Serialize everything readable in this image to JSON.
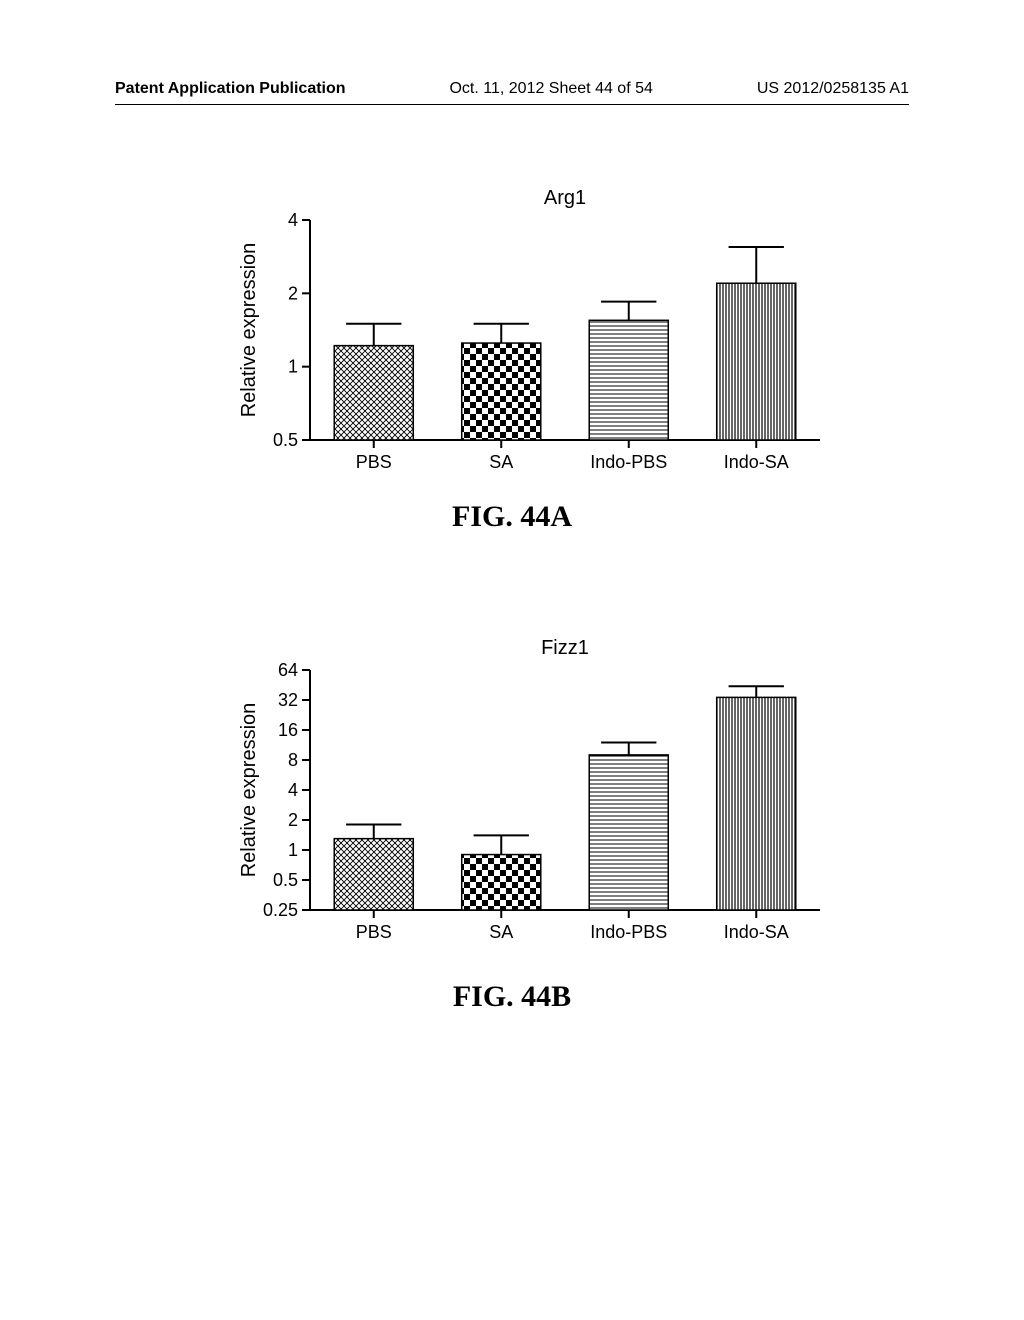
{
  "header": {
    "left": "Patent Application Publication",
    "mid": "Oct. 11, 2012  Sheet 44 of 54",
    "right": "US 2012/0258135 A1"
  },
  "chartA": {
    "type": "bar",
    "title": "Arg1",
    "ylabel": "Relative expression",
    "categories": [
      "PBS",
      "SA",
      "Indo-PBS",
      "Indo-SA"
    ],
    "values": [
      1.22,
      1.25,
      1.55,
      2.2
    ],
    "errors": [
      0.28,
      0.25,
      0.3,
      0.9
    ],
    "yticks": [
      0.5,
      1,
      2,
      4
    ],
    "ylim": [
      0.5,
      4
    ],
    "bar_width": 0.62,
    "patterns": [
      "crosshatch-fine",
      "checker",
      "h-lines",
      "v-lines"
    ],
    "colors": {
      "bar_stroke": "#000000",
      "axis": "#000000",
      "bg": "#ffffff"
    },
    "title_fontsize": 20,
    "label_fontsize": 18,
    "figure_label": "FIG. 44A"
  },
  "chartB": {
    "type": "bar",
    "title": "Fizz1",
    "ylabel": "Relative expression",
    "categories": [
      "PBS",
      "SA",
      "Indo-PBS",
      "Indo-SA"
    ],
    "values": [
      1.3,
      0.9,
      9.0,
      34.0
    ],
    "errors": [
      0.5,
      0.5,
      3.0,
      10.0
    ],
    "yticks": [
      0.25,
      0.5,
      1,
      2,
      4,
      8,
      16,
      32,
      64
    ],
    "ylim": [
      0.25,
      64
    ],
    "bar_width": 0.62,
    "patterns": [
      "crosshatch-fine",
      "checker",
      "h-lines",
      "v-lines"
    ],
    "colors": {
      "bar_stroke": "#000000",
      "axis": "#000000",
      "bg": "#ffffff"
    },
    "title_fontsize": 20,
    "label_fontsize": 18,
    "figure_label": "FIG. 44B"
  }
}
